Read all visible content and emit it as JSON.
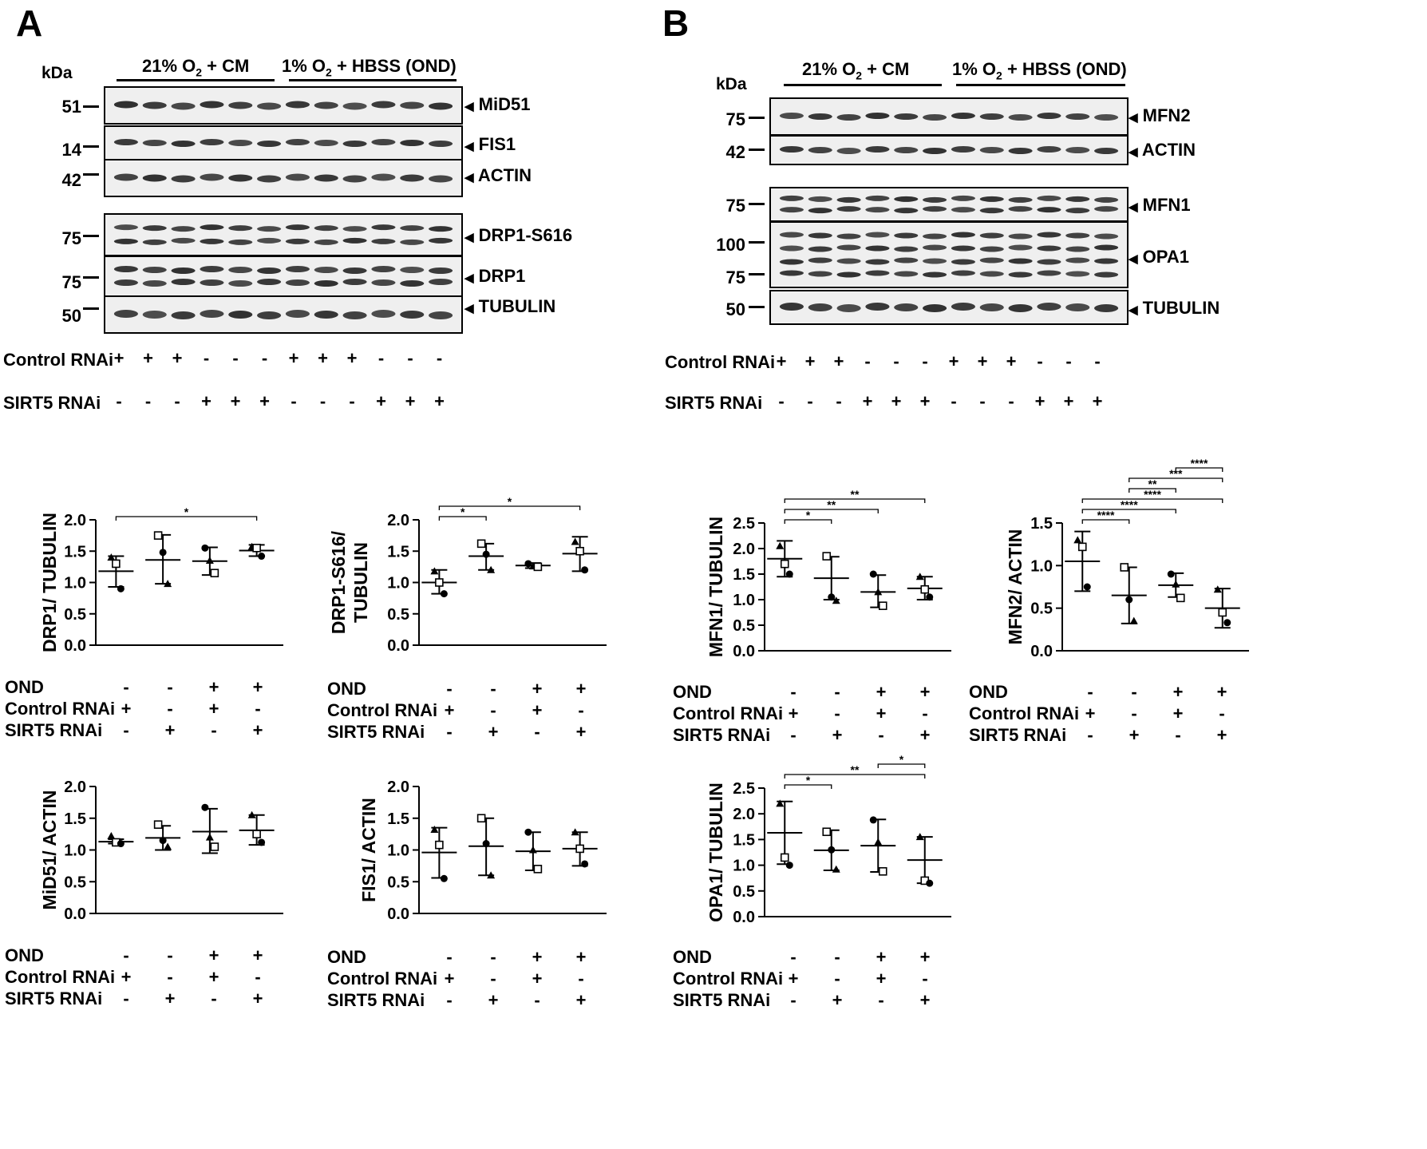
{
  "panels": {
    "A": "A",
    "B": "B"
  },
  "blots_A": {
    "kda": "kDa",
    "header_left": "21% O",
    "header_left_sub": "2",
    "header_left_tail": " + CM",
    "header_right": "1% O",
    "header_right_sub": "2",
    "header_right_tail": " + HBSS (OND)",
    "markers": [
      "51",
      "14",
      "42",
      "75",
      "75",
      "50"
    ],
    "bands": [
      "MiD51",
      "FIS1",
      "ACTIN",
      "DRP1-S616",
      "DRP1",
      "TUBULIN"
    ],
    "row1_label": "Control RNAi",
    "row1_signs": [
      "+",
      "+",
      "+",
      "-",
      "-",
      "-",
      "+",
      "+",
      "+",
      "-",
      "-",
      "-"
    ],
    "row2_label": "SIRT5 RNAi",
    "row2_signs": [
      "-",
      "-",
      "-",
      "+",
      "+",
      "+",
      "-",
      "-",
      "-",
      "+",
      "+",
      "+"
    ]
  },
  "blots_B": {
    "kda": "kDa",
    "header_left": "21% O",
    "header_left_sub": "2",
    "header_left_tail": " + CM",
    "header_right": "1% O",
    "header_right_sub": "2",
    "header_right_tail": " + HBSS (OND)",
    "markers": [
      "75",
      "42",
      "75",
      "100",
      "75",
      "50"
    ],
    "bands": [
      "MFN2",
      "ACTIN",
      "MFN1",
      "OPA1",
      "TUBULIN"
    ],
    "row1_label": "Control RNAi",
    "row1_signs": [
      "+",
      "+",
      "+",
      "-",
      "-",
      "-",
      "+",
      "+",
      "+",
      "-",
      "-",
      "-"
    ],
    "row2_label": "SIRT5 RNAi",
    "row2_signs": [
      "-",
      "-",
      "-",
      "+",
      "+",
      "+",
      "-",
      "-",
      "-",
      "+",
      "+",
      "+"
    ]
  },
  "condition_table": {
    "rows": [
      "OND",
      "Control RNAi",
      "SIRT5 RNAi"
    ],
    "OND": [
      "-",
      "-",
      "+",
      "+"
    ],
    "Control RNAi": [
      "+",
      "-",
      "+",
      "-"
    ],
    "SIRT5 RNAi": [
      "-",
      "+",
      "-",
      "+"
    ]
  },
  "chart_data": [
    {
      "type": "scatter",
      "ylabel": "DRP1/ TUBULIN",
      "ylim": [
        0,
        2.0
      ],
      "yticks": [
        "0.0",
        "0.5",
        "1.0",
        "1.5",
        "2.0"
      ],
      "groups": [
        {
          "mean": 1.18,
          "sd_low": 0.93,
          "sd_high": 1.42,
          "points": [
            1.4,
            1.3,
            0.9
          ]
        },
        {
          "mean": 1.36,
          "sd_low": 0.98,
          "sd_high": 1.76,
          "points": [
            1.75,
            1.48,
            0.98
          ]
        },
        {
          "mean": 1.34,
          "sd_low": 1.12,
          "sd_high": 1.56,
          "points": [
            1.55,
            1.35,
            1.15
          ]
        },
        {
          "mean": 1.51,
          "sd_low": 1.42,
          "sd_high": 1.6,
          "points": [
            1.57,
            1.55,
            1.42
          ]
        }
      ],
      "significance": [
        {
          "from": 0,
          "to": 3,
          "label": "*",
          "level": 0
        }
      ]
    },
    {
      "type": "scatter",
      "ylabel": "DRP1-S616/",
      "ylabel2": "TUBULIN",
      "ylim": [
        0,
        2.0
      ],
      "yticks": [
        "0.0",
        "0.5",
        "1.0",
        "1.5",
        "2.0"
      ],
      "groups": [
        {
          "mean": 1.0,
          "sd_low": 0.82,
          "sd_high": 1.2,
          "points": [
            1.18,
            1.0,
            0.82
          ]
        },
        {
          "mean": 1.42,
          "sd_low": 1.2,
          "sd_high": 1.62,
          "points": [
            1.62,
            1.45,
            1.2
          ]
        },
        {
          "mean": 1.27,
          "sd_low": 1.23,
          "sd_high": 1.31,
          "points": [
            1.3,
            1.26,
            1.25
          ]
        },
        {
          "mean": 1.46,
          "sd_low": 1.18,
          "sd_high": 1.73,
          "points": [
            1.65,
            1.5,
            1.2
          ]
        }
      ],
      "significance": [
        {
          "from": 0,
          "to": 1,
          "label": "*",
          "level": 0
        },
        {
          "from": 0,
          "to": 3,
          "label": "*",
          "level": 1
        }
      ]
    },
    {
      "type": "scatter",
      "ylabel": "MiD51/  ACTIN",
      "ylim": [
        0,
        2.0
      ],
      "yticks": [
        "0.0",
        "0.5",
        "1.0",
        "1.5",
        "2.0"
      ],
      "groups": [
        {
          "mean": 1.13,
          "sd_low": 1.1,
          "sd_high": 1.17,
          "points": [
            1.22,
            1.12,
            1.1
          ]
        },
        {
          "mean": 1.19,
          "sd_low": 1.0,
          "sd_high": 1.38,
          "points": [
            1.4,
            1.15,
            1.05
          ]
        },
        {
          "mean": 1.29,
          "sd_low": 0.95,
          "sd_high": 1.65,
          "points": [
            1.67,
            1.2,
            1.05
          ]
        },
        {
          "mean": 1.31,
          "sd_low": 1.08,
          "sd_high": 1.55,
          "points": [
            1.55,
            1.25,
            1.12
          ]
        }
      ],
      "significance": []
    },
    {
      "type": "scatter",
      "ylabel": "FIS1/ ACTIN",
      "ylim": [
        0,
        2.0
      ],
      "yticks": [
        "0.0",
        "0.5",
        "1.0",
        "1.5",
        "2.0"
      ],
      "groups": [
        {
          "mean": 0.96,
          "sd_low": 0.56,
          "sd_high": 1.35,
          "points": [
            1.32,
            1.08,
            0.55
          ]
        },
        {
          "mean": 1.06,
          "sd_low": 0.6,
          "sd_high": 1.5,
          "points": [
            1.5,
            1.1,
            0.6
          ]
        },
        {
          "mean": 0.98,
          "sd_low": 0.68,
          "sd_high": 1.28,
          "points": [
            1.28,
            1.0,
            0.7
          ]
        },
        {
          "mean": 1.02,
          "sd_low": 0.75,
          "sd_high": 1.28,
          "points": [
            1.28,
            1.02,
            0.78
          ]
        }
      ],
      "significance": []
    },
    {
      "type": "scatter",
      "ylabel": "MFN1/ TUBULIN",
      "ylim": [
        0,
        2.5
      ],
      "yticks": [
        "0.0",
        "0.5",
        "1.0",
        "1.5",
        "2.0",
        "2.5"
      ],
      "groups": [
        {
          "mean": 1.8,
          "sd_low": 1.45,
          "sd_high": 2.15,
          "points": [
            2.05,
            1.7,
            1.5
          ]
        },
        {
          "mean": 1.42,
          "sd_low": 1.0,
          "sd_high": 1.84,
          "points": [
            1.85,
            1.05,
            0.98
          ]
        },
        {
          "mean": 1.15,
          "sd_low": 0.85,
          "sd_high": 1.48,
          "points": [
            1.5,
            1.15,
            0.88
          ]
        },
        {
          "mean": 1.22,
          "sd_low": 1.0,
          "sd_high": 1.45,
          "points": [
            1.45,
            1.2,
            1.05
          ]
        }
      ],
      "significance": [
        {
          "from": 0,
          "to": 1,
          "label": "*",
          "level": 0
        },
        {
          "from": 0,
          "to": 2,
          "label": "**",
          "level": 1
        },
        {
          "from": 0,
          "to": 3,
          "label": "**",
          "level": 2
        }
      ]
    },
    {
      "type": "scatter",
      "ylabel": "MFN2/ ACTIN",
      "ylim": [
        0,
        1.5
      ],
      "yticks": [
        "0.0",
        "0.5",
        "1.0",
        "1.5"
      ],
      "groups": [
        {
          "mean": 1.05,
          "sd_low": 0.7,
          "sd_high": 1.4,
          "points": [
            1.3,
            1.22,
            0.75
          ]
        },
        {
          "mean": 0.65,
          "sd_low": 0.32,
          "sd_high": 0.98,
          "points": [
            0.98,
            0.6,
            0.35
          ]
        },
        {
          "mean": 0.77,
          "sd_low": 0.63,
          "sd_high": 0.91,
          "points": [
            0.9,
            0.78,
            0.62
          ]
        },
        {
          "mean": 0.5,
          "sd_low": 0.27,
          "sd_high": 0.73,
          "points": [
            0.72,
            0.45,
            0.33
          ]
        }
      ],
      "significance": [
        {
          "from": 0,
          "to": 1,
          "label": "****",
          "level": 0
        },
        {
          "from": 0,
          "to": 2,
          "label": "****",
          "level": 1
        },
        {
          "from": 0,
          "to": 3,
          "label": "****",
          "level": 2
        },
        {
          "from": 1,
          "to": 2,
          "label": "**",
          "level": 3
        },
        {
          "from": 1,
          "to": 3,
          "label": "***",
          "level": 4
        },
        {
          "from": 2,
          "to": 3,
          "label": "****",
          "level": 5
        }
      ]
    },
    {
      "type": "scatter",
      "ylabel": "OPA1/ TUBULIN",
      "ylim": [
        0,
        2.5
      ],
      "yticks": [
        "0.0",
        "0.5",
        "1.0",
        "1.5",
        "2.0",
        "2.5"
      ],
      "groups": [
        {
          "mean": 1.63,
          "sd_low": 1.02,
          "sd_high": 2.24,
          "points": [
            2.2,
            1.15,
            1.0
          ]
        },
        {
          "mean": 1.29,
          "sd_low": 0.9,
          "sd_high": 1.68,
          "points": [
            1.65,
            1.3,
            0.92
          ]
        },
        {
          "mean": 1.38,
          "sd_low": 0.87,
          "sd_high": 1.89,
          "points": [
            1.88,
            1.45,
            0.88
          ]
        },
        {
          "mean": 1.1,
          "sd_low": 0.65,
          "sd_high": 1.55,
          "points": [
            1.55,
            0.7,
            0.65
          ]
        }
      ],
      "significance": [
        {
          "from": 0,
          "to": 1,
          "label": "*",
          "level": 0
        },
        {
          "from": 0,
          "to": 3,
          "label": "**",
          "level": 1
        },
        {
          "from": 2,
          "to": 3,
          "label": "*",
          "level": 2
        }
      ]
    }
  ]
}
